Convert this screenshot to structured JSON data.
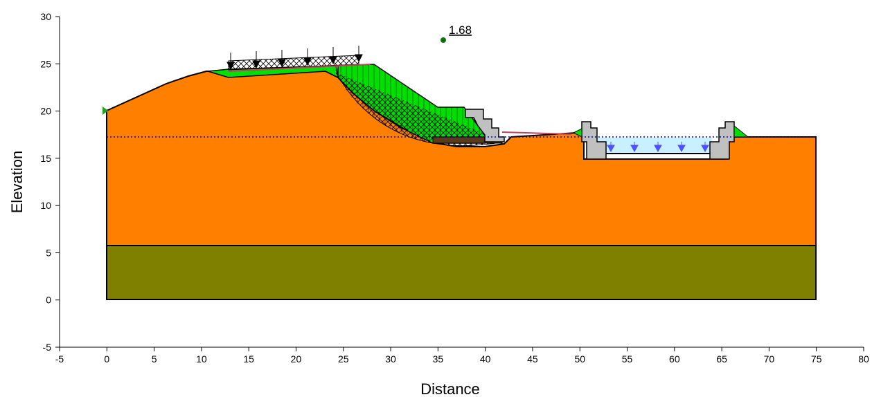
{
  "chart_data": {
    "type": "slope",
    "x_label": "Distance",
    "y_label": "Elevation",
    "xlim": [
      -5,
      80
    ],
    "ylim": [
      -5,
      30
    ],
    "xticks": [
      -5,
      0,
      5,
      10,
      15,
      20,
      25,
      30,
      35,
      40,
      45,
      50,
      55,
      60,
      65,
      70,
      75,
      80
    ],
    "yticks": [
      -5,
      0,
      5,
      10,
      15,
      20,
      25,
      30
    ],
    "factor_of_safety": 1.68
  }
}
